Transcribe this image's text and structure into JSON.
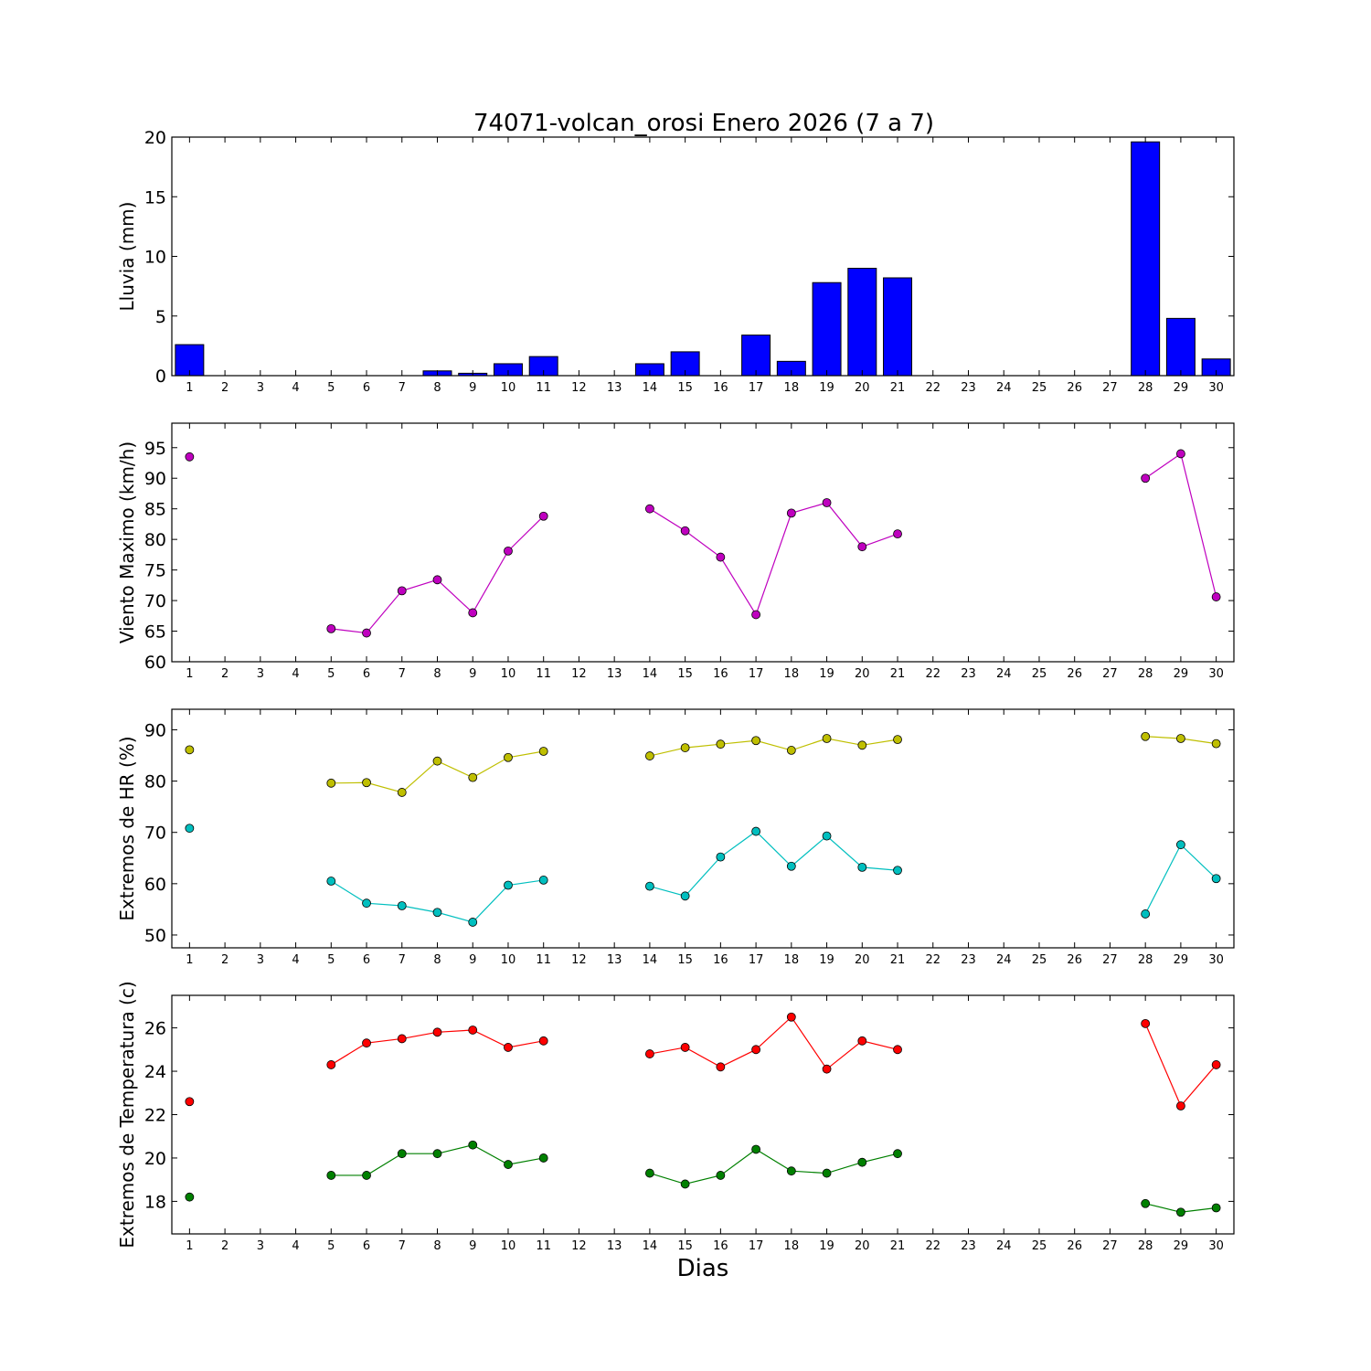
{
  "chart_data": {
    "title": "74071-volcan_orosi Enero 2026  (7 a 7)",
    "xlabel": "Dias",
    "x": [
      1,
      2,
      3,
      4,
      5,
      6,
      7,
      8,
      9,
      10,
      11,
      12,
      13,
      14,
      15,
      16,
      17,
      18,
      19,
      20,
      21,
      22,
      23,
      24,
      25,
      26,
      27,
      28,
      29,
      30
    ],
    "x_tick_labels": [
      "1",
      "2",
      "3",
      "4",
      "5",
      "6",
      "7",
      "8",
      "9",
      "10",
      "11",
      "12",
      "13",
      "14",
      "15",
      "16",
      "17",
      "18",
      "19",
      "20",
      "21",
      "22",
      "23",
      "24",
      "25",
      "26",
      "27",
      "28",
      "29",
      "30"
    ],
    "panels": [
      {
        "type": "bar",
        "ylabel": "Lluvia (mm)",
        "ylim": [
          0,
          20
        ],
        "yticks": [
          0,
          5,
          10,
          15,
          20
        ],
        "ytick_labels": [
          "0",
          "5",
          "10",
          "15",
          "20"
        ],
        "series": [
          {
            "color": "#0000ff",
            "values": [
              2.6,
              0,
              0,
              0,
              0,
              0,
              0,
              0.4,
              0.2,
              1.0,
              1.6,
              0,
              0,
              1.0,
              2.0,
              0,
              3.4,
              1.2,
              7.8,
              9.0,
              8.2,
              0,
              0,
              0,
              0,
              0,
              0,
              19.6,
              4.8,
              1.4
            ]
          }
        ]
      },
      {
        "type": "line",
        "ylabel": "Viento Maximo (km/h)",
        "ylim": [
          60,
          99
        ],
        "yticks": [
          60,
          65,
          70,
          75,
          80,
          85,
          90,
          95
        ],
        "ytick_labels": [
          "60",
          "65",
          "70",
          "75",
          "80",
          "85",
          "90",
          "95"
        ],
        "series": [
          {
            "color": "#bf00bf",
            "values": [
              93.5,
              null,
              null,
              null,
              65.4,
              64.7,
              71.6,
              73.4,
              68.0,
              78.1,
              83.8,
              null,
              null,
              85.0,
              81.4,
              77.1,
              67.7,
              84.3,
              86.0,
              78.8,
              80.9,
              null,
              null,
              null,
              null,
              null,
              null,
              90.0,
              94.0,
              70.6
            ]
          }
        ]
      },
      {
        "type": "line",
        "ylabel": "Extremos de HR (%)",
        "ylim": [
          47.5,
          94
        ],
        "yticks": [
          50,
          60,
          70,
          80,
          90
        ],
        "ytick_labels": [
          "50",
          "60",
          "70",
          "80",
          "90"
        ],
        "series": [
          {
            "color": "#bfbf00",
            "values": [
              86.1,
              null,
              null,
              null,
              79.6,
              79.7,
              77.8,
              83.9,
              80.7,
              84.6,
              85.8,
              null,
              null,
              84.9,
              86.5,
              87.2,
              87.9,
              86.0,
              88.3,
              87.0,
              88.1,
              null,
              null,
              null,
              null,
              null,
              null,
              88.7,
              88.3,
              87.3
            ]
          },
          {
            "color": "#00bfbf",
            "values": [
              70.8,
              null,
              null,
              null,
              60.5,
              56.2,
              55.7,
              54.4,
              52.5,
              59.7,
              60.7,
              null,
              null,
              59.5,
              57.6,
              65.2,
              70.2,
              63.4,
              69.3,
              63.2,
              62.6,
              null,
              null,
              null,
              null,
              null,
              null,
              54.1,
              67.6,
              61.0
            ]
          }
        ]
      },
      {
        "type": "line",
        "ylabel": "Extremos de Temperatura (c)",
        "ylim": [
          16.5,
          27.5
        ],
        "yticks": [
          18,
          20,
          22,
          24,
          26
        ],
        "ytick_labels": [
          "18",
          "20",
          "22",
          "24",
          "26"
        ],
        "series": [
          {
            "color": "#ff0000",
            "values": [
              22.6,
              null,
              null,
              null,
              24.3,
              25.3,
              25.5,
              25.8,
              25.9,
              25.1,
              25.4,
              null,
              null,
              24.8,
              25.1,
              24.2,
              25.0,
              26.5,
              24.1,
              25.4,
              25.0,
              null,
              null,
              null,
              null,
              null,
              null,
              26.2,
              22.4,
              24.3
            ]
          },
          {
            "color": "#008000",
            "values": [
              18.2,
              null,
              null,
              null,
              19.2,
              19.2,
              20.2,
              20.2,
              20.6,
              19.7,
              20.0,
              null,
              null,
              19.3,
              18.8,
              19.2,
              20.4,
              19.4,
              19.3,
              19.8,
              20.2,
              null,
              null,
              null,
              null,
              null,
              null,
              17.9,
              17.5,
              17.7
            ]
          }
        ]
      }
    ]
  }
}
